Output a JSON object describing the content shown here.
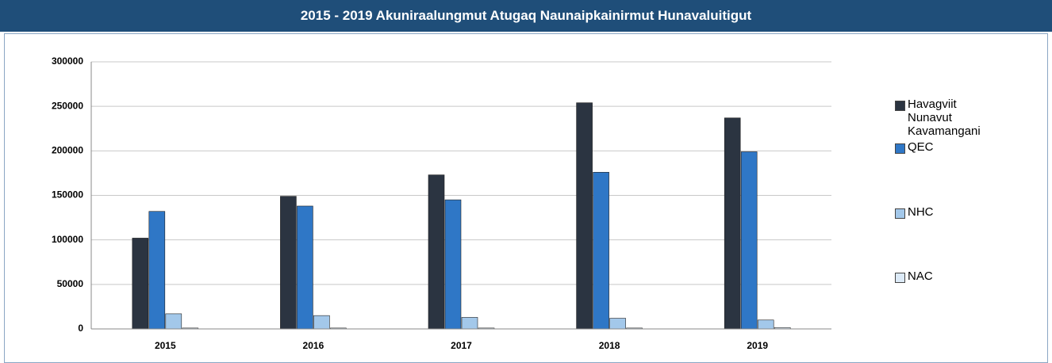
{
  "chart_data": {
    "type": "bar",
    "title": "2015 - 2019 Akuniraalungmut Atugaq Naunaipkainirmut Hunavaluitigut",
    "categories": [
      "2015",
      "2016",
      "2017",
      "2018",
      "2019"
    ],
    "series": [
      {
        "name": "Havagviit Nunavut Kavamangani",
        "color": "#2b3441",
        "values": [
          102000,
          149000,
          173000,
          254000,
          237000
        ]
      },
      {
        "name": "QEC",
        "color": "#2f77c6",
        "values": [
          132000,
          138000,
          145000,
          176000,
          199000
        ]
      },
      {
        "name": "NHC",
        "color": "#a3c8ea",
        "values": [
          17000,
          15000,
          13000,
          12000,
          10000
        ]
      },
      {
        "name": "NAC",
        "color": "#dceaf7",
        "values": [
          1000,
          1000,
          1000,
          1000,
          1500
        ]
      }
    ],
    "ylim": [
      0,
      300000
    ],
    "yticks": [
      0,
      50000,
      100000,
      150000,
      200000,
      250000,
      300000
    ],
    "grid": true
  }
}
